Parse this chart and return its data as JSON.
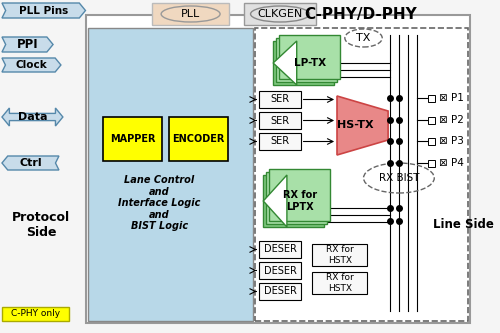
{
  "title": "C-PHY/D-PHY",
  "bg_color": "#f5f5f5",
  "protocol_box_color": "#b8d8e8",
  "mapper_color": "#ffff00",
  "encoder_color": "#ffff00",
  "lptx_color": "#7ec87e",
  "lptx_light": "#a8e0a8",
  "hstx_color": "#e88888",
  "rxlptx_color": "#7ec87e",
  "rxlptx_light": "#a8e0a8",
  "ser_color": "#f8f8f8",
  "deser_color": "#f8f8f8",
  "rxhstx_color": "#f8f8f8",
  "pll_color": "#f0d8c0",
  "clkgen_color": "#e0e0e0",
  "cphy_label_bg": "#ffff00",
  "arrow_fc": "#c8dcea",
  "arrow_ec": "#5588aa",
  "labels": {
    "pll": "PLL",
    "clkgen": "CLKGEN",
    "title": "C-PHY/D-PHY",
    "mapper": "MAPPER",
    "encoder": "ENCODER",
    "lane_ctrl": "Lane Control\nand\nInterface Logic\nand\nBIST Logic",
    "lptx": "LP-TX",
    "hstx": "HS-TX",
    "rxlptx_line1": "RX for",
    "rxlptx_line2": "LPTX",
    "ser": "SER",
    "deser": "DESER",
    "rxhstx_line1": "RX for",
    "rxhstx_line2": "HSTX",
    "tx_label": "TX",
    "rx_bist": "RX BIST",
    "cphy_only": "C-PHY only",
    "protocol_side": "Protocol\nSide",
    "line_side": "Line Side",
    "pll_pins": "PLL Pins",
    "ppi": "PPI",
    "clock": "Clock",
    "data": "Data",
    "ctrl": "Ctrl",
    "p1": "⊠ P1",
    "p2": "⊠ P2",
    "p3": "⊠ P3",
    "p4": "⊠ P4"
  }
}
